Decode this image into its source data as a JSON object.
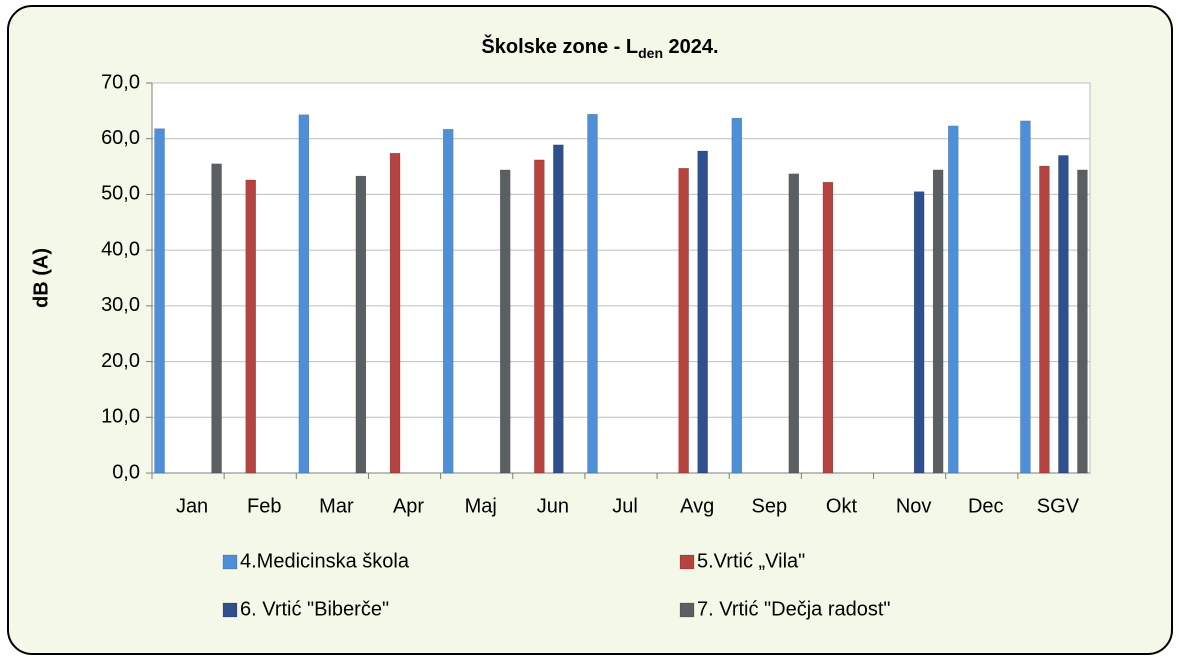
{
  "chart_data": {
    "type": "bar",
    "title_parts": [
      "Školske zone - L",
      "den",
      " 2024."
    ],
    "y_label": "dB (A)",
    "categories": [
      "Jan",
      "Feb",
      "Mar",
      "Apr",
      "Maj",
      "Jun",
      "Jul",
      "Avg",
      "Sep",
      "Okt",
      "Nov",
      "Dec",
      "SGV"
    ],
    "series": [
      {
        "name": "4.Medicinska škola",
        "color": "#4f8fd8",
        "values": [
          61.8,
          null,
          64.3,
          null,
          61.7,
          null,
          64.4,
          null,
          63.7,
          null,
          null,
          62.3,
          63.2
        ]
      },
      {
        "name": "5.Vrtić „Vila\"",
        "color": "#b5433f",
        "values": [
          null,
          52.6,
          null,
          57.4,
          null,
          56.2,
          null,
          54.7,
          null,
          52.2,
          null,
          null,
          55.1
        ]
      },
      {
        "name": "6. Vrtić \"Biberče\"",
        "color": "#2f4f8f",
        "values": [
          null,
          null,
          null,
          null,
          null,
          58.9,
          null,
          57.8,
          null,
          null,
          50.5,
          null,
          57.0
        ]
      },
      {
        "name": "7. Vrtić \"Dečja radost\"",
        "color": "#5a5f63",
        "values": [
          55.5,
          null,
          53.3,
          null,
          54.4,
          null,
          null,
          null,
          53.7,
          null,
          54.4,
          null,
          54.4
        ]
      }
    ],
    "ylim": [
      0,
      70
    ],
    "yticks": [
      {
        "value": 0,
        "label": "0,0"
      },
      {
        "value": 10,
        "label": "10,0"
      },
      {
        "value": 20,
        "label": "20,0"
      },
      {
        "value": 30,
        "label": "30,0"
      },
      {
        "value": 40,
        "label": "40,0"
      },
      {
        "value": 50,
        "label": "50,0"
      },
      {
        "value": 60,
        "label": "60,0"
      },
      {
        "value": 70,
        "label": "70,0"
      }
    ],
    "grid": true,
    "legend": "bottom"
  }
}
